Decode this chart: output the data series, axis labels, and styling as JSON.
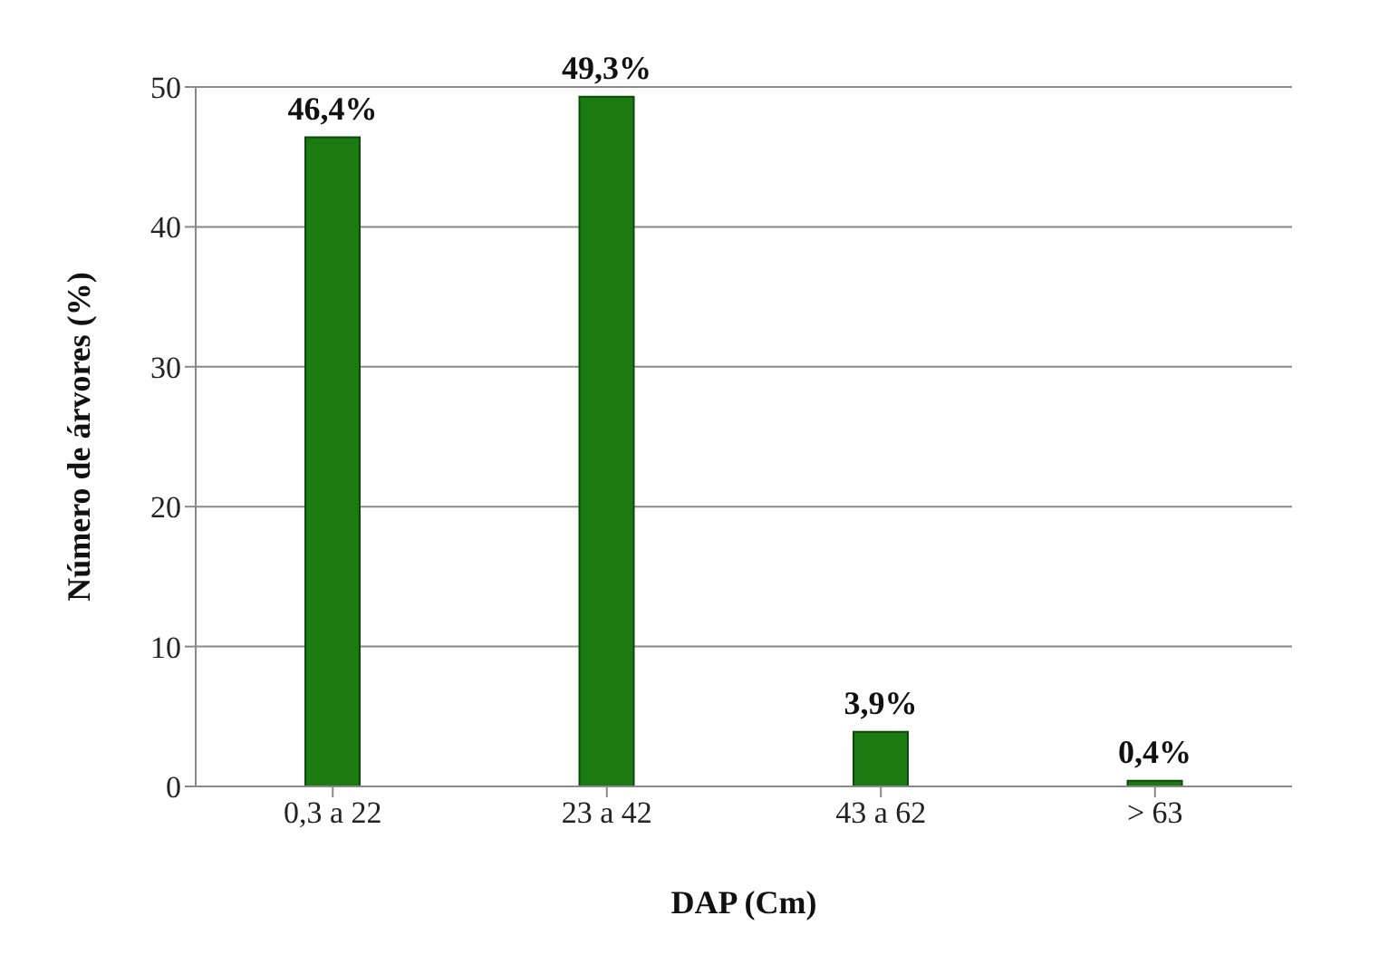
{
  "chart_data": {
    "type": "bar",
    "xlabel": "DAP (Cm)",
    "ylabel": "Número de árvores (%)",
    "categories": [
      "0,3 a 22",
      "23 a 42",
      "43 a 62",
      "> 63"
    ],
    "values": [
      46.4,
      49.3,
      3.9,
      0.4
    ],
    "value_labels": [
      "46,4%",
      "49,3%",
      "3,9%",
      "0,4%"
    ],
    "color": "#1c7a12",
    "ylim": [
      0,
      50
    ],
    "yticks": [
      0,
      10,
      20,
      30,
      40,
      50
    ],
    "grid": "y"
  }
}
